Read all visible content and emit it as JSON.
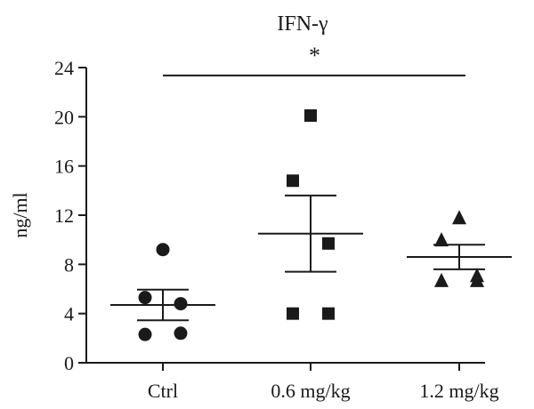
{
  "chart_data": {
    "type": "scatter",
    "title": "IFN-γ",
    "xlabel": "",
    "ylabel": "ng/ml",
    "ylim": [
      0,
      24
    ],
    "yticks": [
      0,
      4,
      8,
      12,
      16,
      20,
      24
    ],
    "categories": [
      "Ctrl",
      "0.6 mg/kg",
      "1.2 mg/kg"
    ],
    "series": [
      {
        "category": "Ctrl",
        "marker": "circle",
        "points": [
          9.2,
          5.3,
          4.8,
          2.3,
          2.4
        ],
        "mean": 4.7,
        "sem_upper": 5.95,
        "sem_lower": 3.45
      },
      {
        "category": "0.6 mg/kg",
        "marker": "square",
        "points": [
          20.1,
          14.8,
          9.7,
          4.0,
          4.0
        ],
        "mean": 10.5,
        "sem_upper": 13.6,
        "sem_lower": 7.4
      },
      {
        "category": "1.2 mg/kg",
        "marker": "triangle",
        "points": [
          11.8,
          10.0,
          7.1,
          6.7,
          6.7
        ],
        "mean": 8.6,
        "sem_upper": 9.6,
        "sem_lower": 7.6
      }
    ],
    "significance": {
      "label": "*",
      "from": "Ctrl",
      "to": "1.2 mg/kg",
      "y": 23.5
    },
    "grid": false,
    "legend": "none",
    "colors": {
      "marker": "#1a1a1a",
      "axis": "#1a1a1a"
    }
  }
}
